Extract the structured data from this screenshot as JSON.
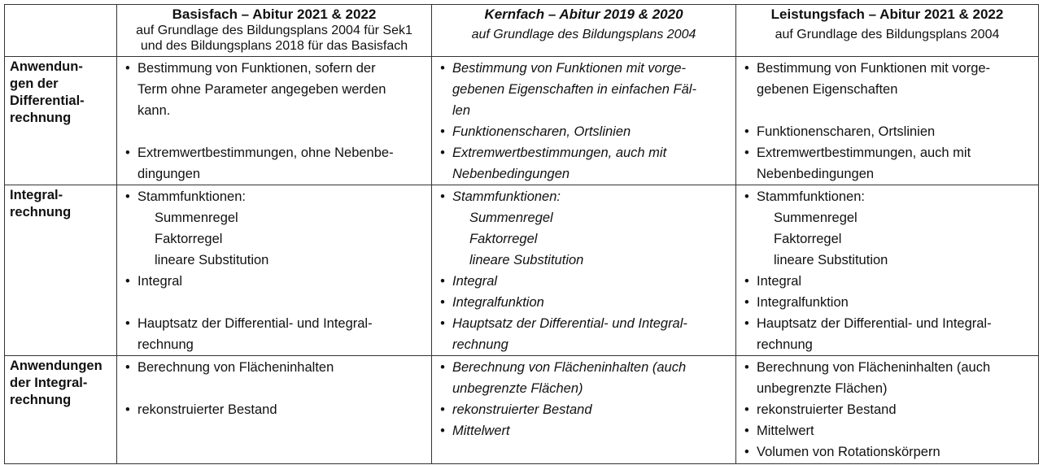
{
  "header": [
    {
      "title": "",
      "subtitle": ""
    },
    {
      "title": "Basisfach – Abitur 2021 & 2022",
      "subtitle": "auf Grundlage des Bildungsplans 2004 für Sek1\nund des Bildungsplans 2018 für das Basisfach"
    },
    {
      "title": "Kernfach – Abitur 2019 & 2020",
      "subtitle": "auf Grundlage des Bildungsplans 2004"
    },
    {
      "title": "Leistungsfach  – Abitur 2021 & 2022",
      "subtitle": "auf Grundlage des Bildungsplans 2004"
    }
  ],
  "bullet_glyph": "•",
  "rows": [
    {
      "topic": [
        "Anwendun-",
        "gen der",
        "Differential-",
        "rechnung"
      ],
      "cells": [
        [
          {
            "kind": "bullet",
            "text": "Bestimmung von Funktionen, sofern der"
          },
          {
            "kind": "cont",
            "text": "Term ohne Parameter angegeben werden"
          },
          {
            "kind": "cont",
            "text": "kann."
          },
          {
            "kind": "blank",
            "text": ""
          },
          {
            "kind": "bullet",
            "text": "Extremwertbestimmungen, ohne Nebenbe-"
          },
          {
            "kind": "cont",
            "text": "dingungen"
          }
        ],
        [
          {
            "kind": "bullet",
            "text": "Bestimmung von Funktionen mit vorge-"
          },
          {
            "kind": "cont",
            "text": "gebenen Eigenschaften in einfachen Fäl-"
          },
          {
            "kind": "cont",
            "text": "len"
          },
          {
            "kind": "bullet",
            "text": "Funktionenscharen, Ortslinien"
          },
          {
            "kind": "bullet",
            "text": "Extremwertbestimmungen, auch mit"
          },
          {
            "kind": "cont",
            "text": "Nebenbedingungen"
          }
        ],
        [
          {
            "kind": "bullet",
            "text": "Bestimmung von Funktionen mit vorge-"
          },
          {
            "kind": "cont",
            "text": "gebenen Eigenschaften"
          },
          {
            "kind": "blank",
            "text": ""
          },
          {
            "kind": "bullet",
            "text": "Funktionenscharen, Ortslinien"
          },
          {
            "kind": "bullet",
            "text": "Extremwertbestimmungen, auch mit"
          },
          {
            "kind": "cont",
            "text": "Nebenbedingungen"
          }
        ]
      ]
    },
    {
      "topic": [
        "Integral-",
        "rechnung"
      ],
      "cells": [
        [
          {
            "kind": "bullet",
            "text": "Stammfunktionen:"
          },
          {
            "kind": "sub",
            "text": "Summenregel"
          },
          {
            "kind": "sub",
            "text": "Faktorregel"
          },
          {
            "kind": "sub",
            "text": "lineare Substitution"
          },
          {
            "kind": "bullet",
            "text": "Integral"
          },
          {
            "kind": "blank",
            "text": ""
          },
          {
            "kind": "bullet",
            "text": "Hauptsatz der Differential- und Integral-"
          },
          {
            "kind": "cont",
            "text": "rechnung"
          }
        ],
        [
          {
            "kind": "bullet",
            "text": "Stammfunktionen:"
          },
          {
            "kind": "sub",
            "text": "Summenregel"
          },
          {
            "kind": "sub",
            "text": "Faktorregel"
          },
          {
            "kind": "sub",
            "text": "lineare Substitution"
          },
          {
            "kind": "bullet",
            "text": "Integral"
          },
          {
            "kind": "bullet",
            "text": "Integralfunktion"
          },
          {
            "kind": "bullet",
            "text": "Hauptsatz der Differential- und Integral-"
          },
          {
            "kind": "cont",
            "text": "rechnung"
          }
        ],
        [
          {
            "kind": "bullet",
            "text": "Stammfunktionen:"
          },
          {
            "kind": "sub",
            "text": "Summenregel"
          },
          {
            "kind": "sub",
            "text": "Faktorregel"
          },
          {
            "kind": "sub",
            "text": "lineare Substitution"
          },
          {
            "kind": "bullet",
            "text": "Integral"
          },
          {
            "kind": "bullet",
            "text": "Integralfunktion"
          },
          {
            "kind": "bullet",
            "text": "Hauptsatz der Differential- und Integral-"
          },
          {
            "kind": "cont",
            "text": "rechnung"
          }
        ]
      ]
    },
    {
      "topic": [
        "Anwendungen",
        "der Integral-",
        "rechnung"
      ],
      "cells": [
        [
          {
            "kind": "bullet",
            "text": "Berechnung von Flächeninhalten"
          },
          {
            "kind": "blank",
            "text": ""
          },
          {
            "kind": "bullet",
            "text": "rekonstruierter Bestand"
          }
        ],
        [
          {
            "kind": "bullet",
            "text": "Berechnung von Flächeninhalten (auch"
          },
          {
            "kind": "cont",
            "text": "unbegrenzte Flächen)"
          },
          {
            "kind": "bullet",
            "text": "rekonstruierter Bestand"
          },
          {
            "kind": "bullet",
            "text": "Mittelwert"
          }
        ],
        [
          {
            "kind": "bullet",
            "text": "Berechnung von Flächeninhalten (auch"
          },
          {
            "kind": "cont",
            "text": "unbegrenzte Flächen)"
          },
          {
            "kind": "bullet",
            "text": "rekonstruierter Bestand"
          },
          {
            "kind": "bullet",
            "text": "Mittelwert"
          },
          {
            "kind": "bullet",
            "text": "Volumen von Rotationskörpern"
          }
        ]
      ]
    }
  ]
}
